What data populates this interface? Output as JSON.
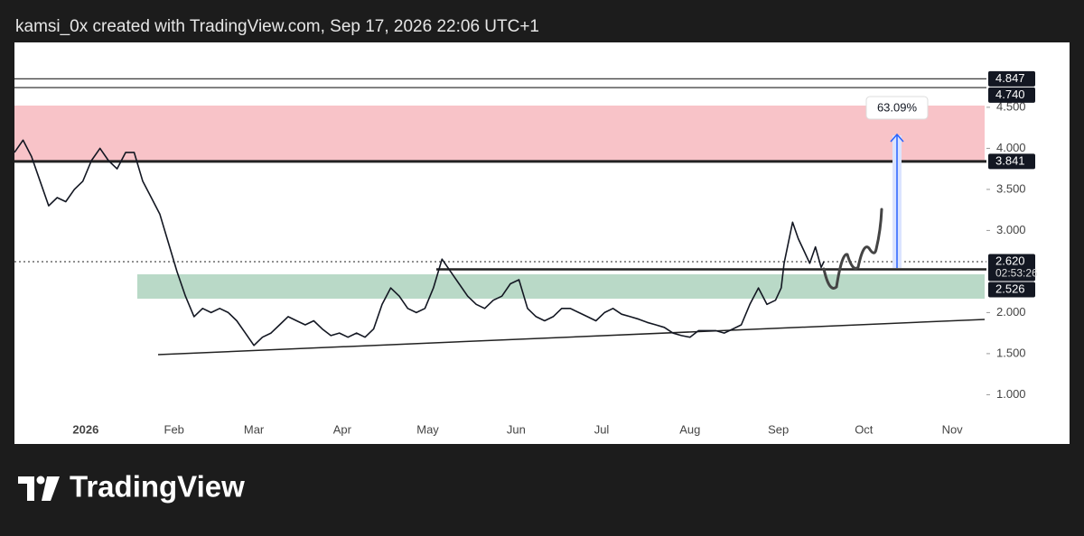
{
  "header": "kamsi_0x created with TradingView.com, Sep 17, 2026 22:06 UTC+1",
  "brand": "TradingView",
  "chart_data": {
    "type": "line",
    "series": [
      {
        "color": "#131722",
        "x": [
          -25,
          -22,
          -19,
          -16,
          -13,
          -10,
          -7,
          -4,
          -1,
          2,
          5,
          8,
          11,
          14,
          17,
          20,
          23,
          26,
          29,
          32,
          35,
          38,
          41,
          44,
          47,
          50,
          53,
          56,
          59,
          62,
          65,
          68,
          71,
          74,
          77,
          80,
          83,
          86,
          89,
          92,
          95,
          98,
          101,
          104,
          107,
          110,
          113,
          116,
          119,
          122,
          125,
          128,
          131,
          134,
          137,
          140,
          143,
          146,
          149,
          152,
          155,
          158,
          161,
          164,
          167,
          170,
          173,
          176,
          179,
          182,
          185,
          188,
          191,
          194,
          197,
          200,
          203,
          206,
          209,
          212,
          215,
          218,
          221,
          224,
          227,
          230,
          233,
          236,
          239,
          242,
          244,
          245,
          248,
          250,
          252,
          254,
          256,
          258,
          259
        ],
        "values": [
          3.95,
          4.1,
          3.9,
          3.6,
          3.3,
          3.4,
          3.35,
          3.5,
          3.6,
          3.85,
          4.0,
          3.85,
          3.75,
          3.95,
          3.95,
          3.6,
          3.4,
          3.2,
          2.85,
          2.5,
          2.2,
          1.95,
          2.05,
          2.0,
          2.05,
          2.0,
          1.9,
          1.75,
          1.6,
          1.7,
          1.75,
          1.85,
          1.95,
          1.9,
          1.85,
          1.9,
          1.8,
          1.72,
          1.75,
          1.7,
          1.75,
          1.7,
          1.8,
          2.1,
          2.3,
          2.2,
          2.05,
          2.0,
          2.05,
          2.3,
          2.65,
          2.5,
          2.35,
          2.2,
          2.1,
          2.05,
          2.15,
          2.2,
          2.35,
          2.4,
          2.05,
          1.95,
          1.9,
          1.95,
          2.05,
          2.05,
          2.0,
          1.95,
          1.9,
          2.0,
          2.05,
          1.98,
          1.95,
          1.92,
          1.88,
          1.85,
          1.82,
          1.75,
          1.72,
          1.7,
          1.78,
          1.78,
          1.78,
          1.75,
          1.8,
          1.85,
          2.1,
          2.3,
          2.1,
          2.15,
          2.3,
          2.6,
          3.1,
          2.9,
          2.75,
          2.6,
          2.8,
          2.55,
          2.62
        ]
      }
    ],
    "xlim": [
      -25,
      316
    ],
    "xticks": [
      {
        "value": 0,
        "label": "2026"
      },
      {
        "value": 31,
        "label": "Feb"
      },
      {
        "value": 59,
        "label": "Mar"
      },
      {
        "value": 90,
        "label": "Apr"
      },
      {
        "value": 120,
        "label": "May"
      },
      {
        "value": 151,
        "label": "Jun"
      },
      {
        "value": 181,
        "label": "Jul"
      },
      {
        "value": 212,
        "label": "Aug"
      },
      {
        "value": 243,
        "label": "Sep"
      },
      {
        "value": 273,
        "label": "Oct"
      },
      {
        "value": 304,
        "label": "Nov"
      }
    ],
    "ylim": [
      0.4,
      5.29
    ],
    "yticks": [
      {
        "value": 1,
        "label": "1.000"
      },
      {
        "value": 1.5,
        "label": "1.500"
      },
      {
        "value": 2,
        "label": "2.000"
      },
      {
        "value": 3,
        "label": "3.000"
      },
      {
        "value": 3.5,
        "label": "3.500"
      },
      {
        "value": 4,
        "label": "4.000"
      },
      {
        "value": 4.5,
        "label": "4.500"
      }
    ],
    "price_labels": [
      4.847,
      {
        "value": 4.74,
        "label": "4.740"
      },
      3.841,
      {
        "value": 2.62,
        "label": "2.620"
      },
      2.526
    ],
    "countdown": "02:53:26",
    "annotation": "63.09%"
  }
}
